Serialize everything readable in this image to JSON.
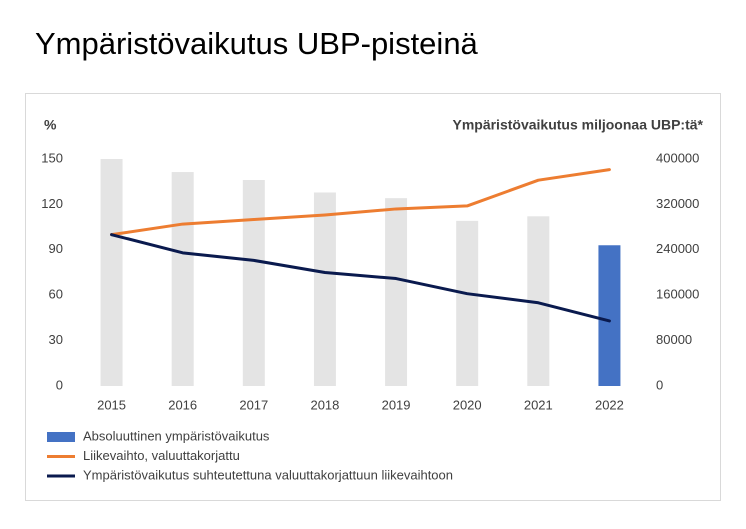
{
  "chart_data": {
    "type": "combo",
    "title": "Ympäristövaikutus UBP-pisteinä",
    "y_label": "%",
    "y2_label": "Ympäristövaikutus miljoonaa UBP:tä*",
    "categories": [
      "2015",
      "2016",
      "2017",
      "2018",
      "2019",
      "2020",
      "2021",
      "2022"
    ],
    "ylim": [
      0,
      150
    ],
    "yticks": [
      0,
      30,
      60,
      90,
      120,
      150
    ],
    "y2lim": [
      0,
      400000
    ],
    "y2ticks": [
      0,
      80000,
      160000,
      240000,
      320000,
      400000
    ],
    "grid": false,
    "series": [
      {
        "name": "Absoluuttinen ympäristövaikutus",
        "type": "bar",
        "axis": "y2",
        "color": "#4472c4",
        "colors": [
          "#e4e4e4",
          "#e4e4e4",
          "#e4e4e4",
          "#e4e4e4",
          "#e4e4e4",
          "#e4e4e4",
          "#e4e4e4",
          "#4472c4"
        ],
        "values": [
          400000,
          377000,
          363000,
          341000,
          331000,
          291000,
          299000,
          248000
        ]
      },
      {
        "name": "Liikevaihto, valuuttakorjattu",
        "type": "line",
        "color": "#ed7d31",
        "values": [
          100,
          107,
          110,
          113,
          117,
          119,
          136,
          143
        ]
      },
      {
        "name": "Ympäristövaikutus suhteutettuna valuuttakorjattuun liikevaihtoon",
        "type": "line",
        "color": "#0a1a4e",
        "values": [
          100,
          88,
          83,
          75,
          71,
          61,
          55,
          43
        ]
      }
    ]
  }
}
